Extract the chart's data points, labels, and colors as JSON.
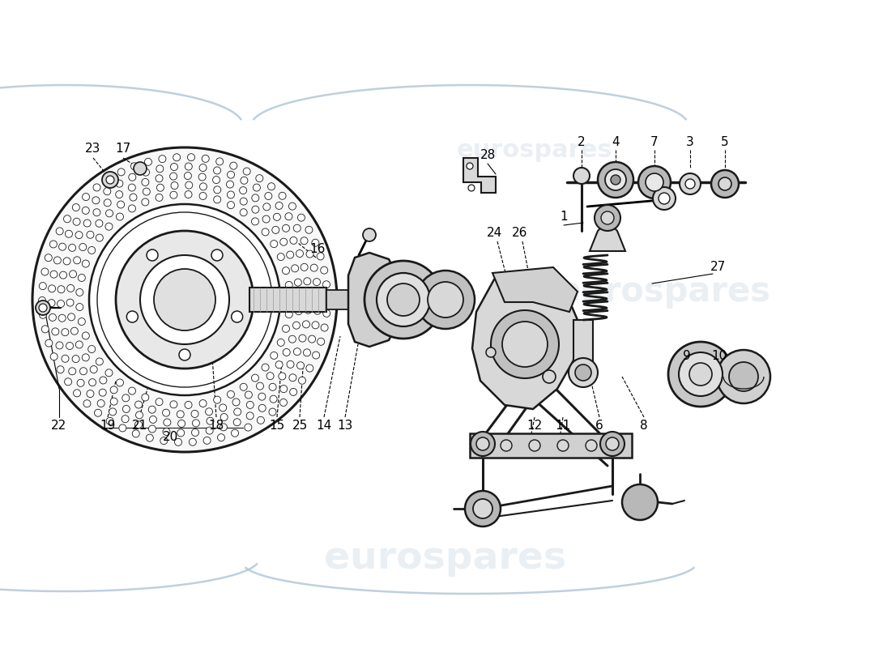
{
  "background_color": "#ffffff",
  "watermark_text": "eurospares",
  "wm_color": "#a0b8cc",
  "wm_alpha": 0.22,
  "line_color": "#1a1a1a",
  "light_gray": "#d8d8d8",
  "mid_gray": "#b8b8b8",
  "dark_gray": "#989898",
  "font_size": 11,
  "fig_w": 11.0,
  "fig_h": 8.0,
  "dpi": 100
}
